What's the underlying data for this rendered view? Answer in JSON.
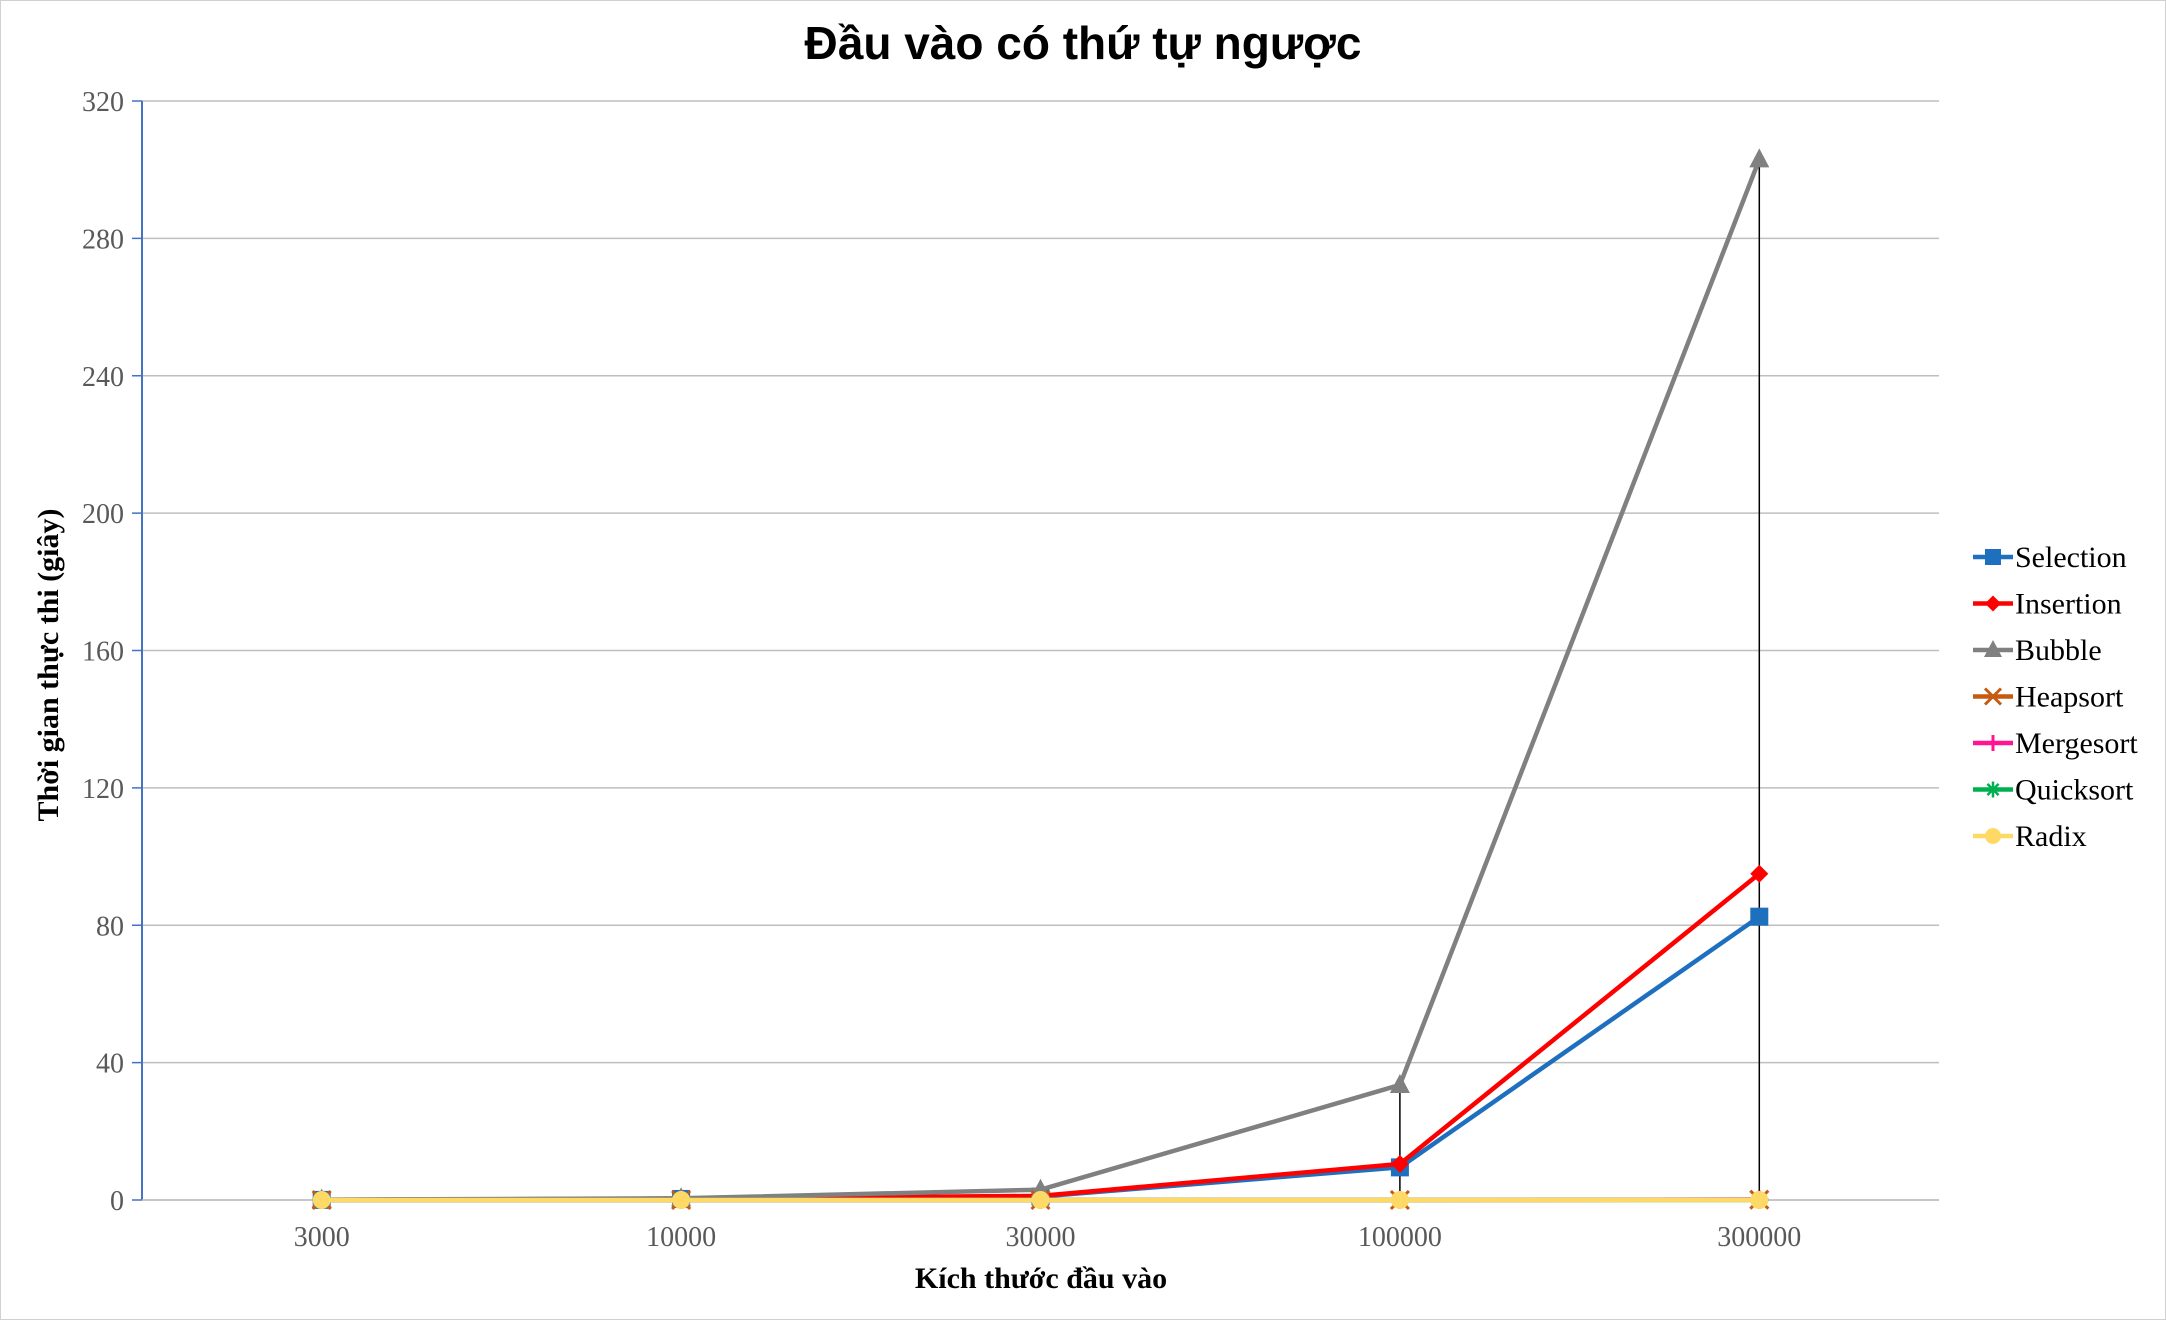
{
  "chart_data": {
    "type": "line",
    "title": "Đầu vào có thứ tự ngược",
    "xlabel": "Kích thước đầu vào",
    "ylabel": "Thời gian thực thi (giây)",
    "categories": [
      "3000",
      "10000",
      "30000",
      "100000",
      "300000"
    ],
    "ylim": [
      0,
      320
    ],
    "yticks": [
      "0",
      "40",
      "80",
      "120",
      "160",
      "200",
      "240",
      "280",
      "320"
    ],
    "grid": "horizontal",
    "legend_position": "right",
    "series": [
      {
        "name": "Selection",
        "values": [
          0.03,
          0.3,
          1.0,
          9.5,
          82.5
        ],
        "color": "#1F6FBF",
        "marker": "square"
      },
      {
        "name": "Insertion",
        "values": [
          0.04,
          0.4,
          1.2,
          10.5,
          95.0
        ],
        "color": "#FF0000",
        "marker": "diamond"
      },
      {
        "name": "Bubble",
        "values": [
          0.1,
          0.5,
          3.0,
          33.5,
          303.0
        ],
        "color": "#808080",
        "marker": "triangle"
      },
      {
        "name": "Heapsort",
        "values": [
          0.0,
          0.0,
          0.0,
          0.0,
          0.1
        ],
        "color": "#C55A11",
        "marker": "x"
      },
      {
        "name": "Mergesort",
        "values": [
          0.0,
          0.0,
          0.0,
          0.0,
          0.1
        ],
        "color": "#FF1493",
        "marker": "plus"
      },
      {
        "name": "Quicksort",
        "values": [
          0.0,
          0.0,
          0.0,
          0.0,
          0.0
        ],
        "color": "#00B050",
        "marker": "asterisk"
      },
      {
        "name": "Radix",
        "values": [
          0.0,
          0.0,
          0.0,
          0.0,
          0.0
        ],
        "color": "#FFD966",
        "marker": "circle"
      }
    ]
  }
}
